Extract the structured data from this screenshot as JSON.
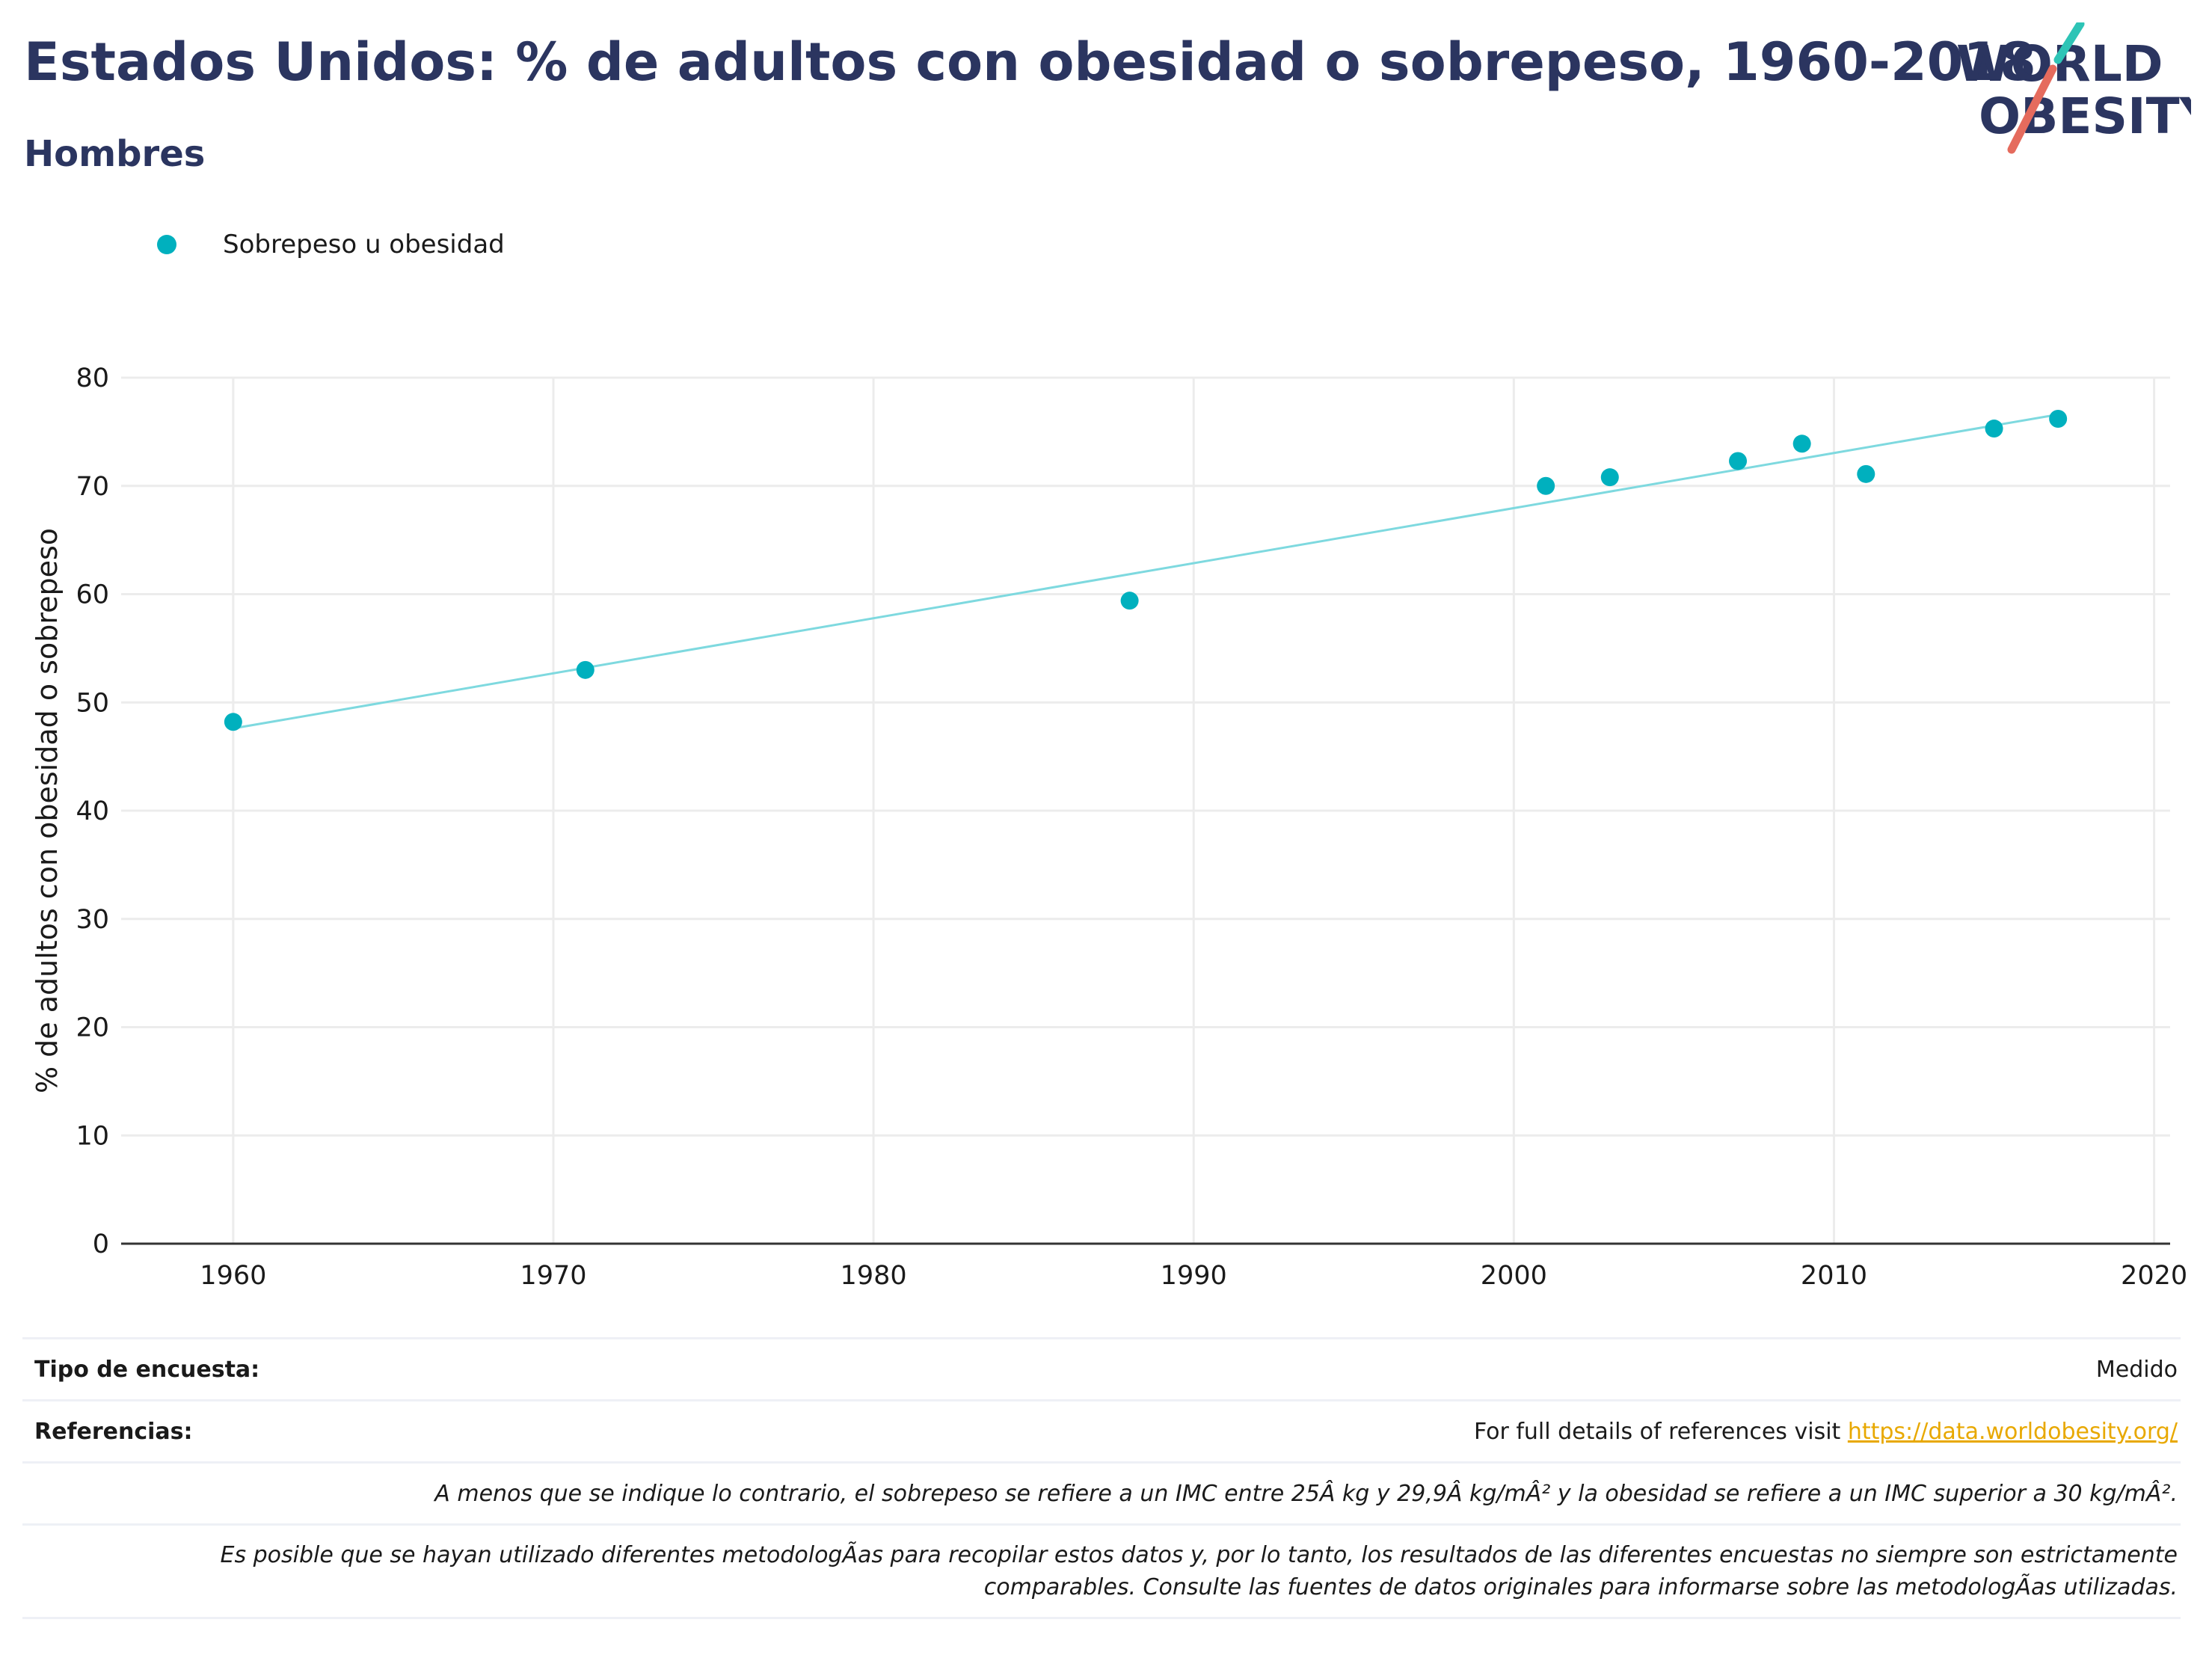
{
  "header": {
    "title": "Estados Unidos: % de adultos con obesidad o sobrepeso, 1960-2018",
    "subtitle": "Hombres"
  },
  "logo": {
    "line1": "WORLD",
    "line2": "OBESITY",
    "slash_colors": [
      "#2ec4b6",
      "#e56b5d"
    ]
  },
  "legend": {
    "label": "Sobrepeso u obesidad"
  },
  "colors": {
    "title": "#2b3560",
    "marker": "#00b0be",
    "trendline": "#7ed9df",
    "grid": "#ececec",
    "link": "#e8a800"
  },
  "chart_data": {
    "type": "scatter",
    "ylabel": "% de adultos con obesidad o sobrepeso",
    "xlabel": "",
    "xlim": [
      1956.5,
      2020.5
    ],
    "ylim": [
      0,
      80
    ],
    "xticks": [
      1960,
      1970,
      1980,
      1990,
      2000,
      2010,
      2020
    ],
    "yticks": [
      0,
      10,
      20,
      30,
      40,
      50,
      60,
      70,
      80
    ],
    "grid": true,
    "legend_position": "top-left",
    "series": [
      {
        "name": "Sobrepeso u obesidad",
        "points": [
          {
            "x": 1960,
            "y": 48.2
          },
          {
            "x": 1971,
            "y": 53.0
          },
          {
            "x": 1988,
            "y": 59.4
          },
          {
            "x": 2001,
            "y": 70.0
          },
          {
            "x": 2003,
            "y": 70.8
          },
          {
            "x": 2007,
            "y": 72.3
          },
          {
            "x": 2009,
            "y": 73.9
          },
          {
            "x": 2011,
            "y": 71.1
          },
          {
            "x": 2015,
            "y": 75.3
          },
          {
            "x": 2017,
            "y": 76.2
          }
        ]
      }
    ],
    "trendline": {
      "x": [
        1960,
        2017
      ],
      "y": [
        47.6,
        76.6
      ]
    }
  },
  "footer": {
    "survey_label": "Tipo de encuesta:",
    "survey_value": "Medido",
    "refs_label": "Referencias:",
    "refs_text": "For full details of references visit ",
    "refs_link": "https://data.worldobesity.org/",
    "note1": "A menos que se indique lo contrario, el sobrepeso se refiere a un IMC entre 25Â kg y 29,9Â kg/mÂ² y la obesidad se refiere a un IMC superior a 30 kg/mÂ².",
    "note2_line1": "Es posible que se hayan utilizado diferentes metodologÃas para recopilar estos datos y, por lo tanto, los resultados de las diferentes encuestas no siempre son estrictamente",
    "note2_line2": "comparables. Consulte las fuentes de datos originales para informarse sobre las metodologÃas utilizadas."
  }
}
